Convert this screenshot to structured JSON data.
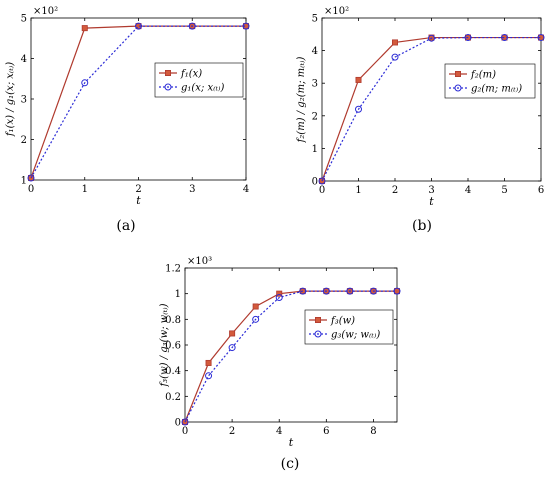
{
  "colors": {
    "series1": "#b03a2e",
    "series2": "#2b2bd6",
    "axis": "#000000"
  },
  "chart_data": [
    {
      "type": "line",
      "caption": "(a)",
      "xlabel": "t",
      "ylabel": "f₁(x) / g₁(x; x₍ₜ₎)",
      "exponent_label": "×10²",
      "xlim": [
        0,
        4
      ],
      "ylim": [
        1,
        5
      ],
      "xticks": [
        "0",
        "1",
        "2",
        "3",
        "4"
      ],
      "yticks": [
        "1",
        "2",
        "3",
        "4",
        "5"
      ],
      "legend_position": "right-middle",
      "series": [
        {
          "name": "f₁(x)",
          "x": [
            0,
            1,
            2,
            3,
            4
          ],
          "values": [
            1.05,
            4.75,
            4.8,
            4.8,
            4.8
          ]
        },
        {
          "name": "g₁(x; x₍ₜ₎)",
          "x": [
            0,
            1,
            2,
            3,
            4
          ],
          "values": [
            1.05,
            3.4,
            4.8,
            4.8,
            4.8
          ]
        }
      ]
    },
    {
      "type": "line",
      "caption": "(b)",
      "xlabel": "t",
      "ylabel": "f₂(m) / g₂(m; m₍ₜ₎)",
      "exponent_label": "×10²",
      "xlim": [
        0,
        6
      ],
      "ylim": [
        0,
        5
      ],
      "xticks": [
        "0",
        "1",
        "2",
        "3",
        "4",
        "5",
        "6"
      ],
      "yticks": [
        "0",
        "1",
        "2",
        "3",
        "4",
        "5"
      ],
      "legend_position": "right-middle",
      "series": [
        {
          "name": "f₂(m)",
          "x": [
            0,
            1,
            2,
            3,
            4,
            5,
            6
          ],
          "values": [
            0,
            3.1,
            4.25,
            4.4,
            4.4,
            4.4,
            4.4
          ]
        },
        {
          "name": "g₂(m; m₍ₜ₎)",
          "x": [
            0,
            1,
            2,
            3,
            4,
            5,
            6
          ],
          "values": [
            0,
            2.2,
            3.8,
            4.38,
            4.4,
            4.4,
            4.4
          ]
        }
      ]
    },
    {
      "type": "line",
      "caption": "(c)",
      "xlabel": "t",
      "ylabel": "f₃(w) / g₃(w; w₍ₜ₎)",
      "exponent_label": "×10³",
      "xlim": [
        0,
        9
      ],
      "ylim": [
        0,
        1.2
      ],
      "xticks": [
        "0",
        "2",
        "4",
        "6",
        "8"
      ],
      "xtick_values": [
        0,
        2,
        4,
        6,
        8
      ],
      "yticks": [
        "0",
        "0.2",
        "0.4",
        "0.6",
        "0.8",
        "1",
        "1.2"
      ],
      "legend_position": "right-top",
      "series": [
        {
          "name": "f₃(w)",
          "x": [
            0,
            1,
            2,
            3,
            4,
            5,
            6,
            7,
            8,
            9
          ],
          "values": [
            0,
            0.46,
            0.69,
            0.9,
            1.0,
            1.02,
            1.02,
            1.02,
            1.02,
            1.02
          ]
        },
        {
          "name": "g₃(w; w₍ₜ₎)",
          "x": [
            0,
            1,
            2,
            3,
            4,
            5,
            6,
            7,
            8,
            9
          ],
          "values": [
            0,
            0.36,
            0.58,
            0.8,
            0.97,
            1.02,
            1.02,
            1.02,
            1.02,
            1.02
          ]
        }
      ]
    }
  ]
}
